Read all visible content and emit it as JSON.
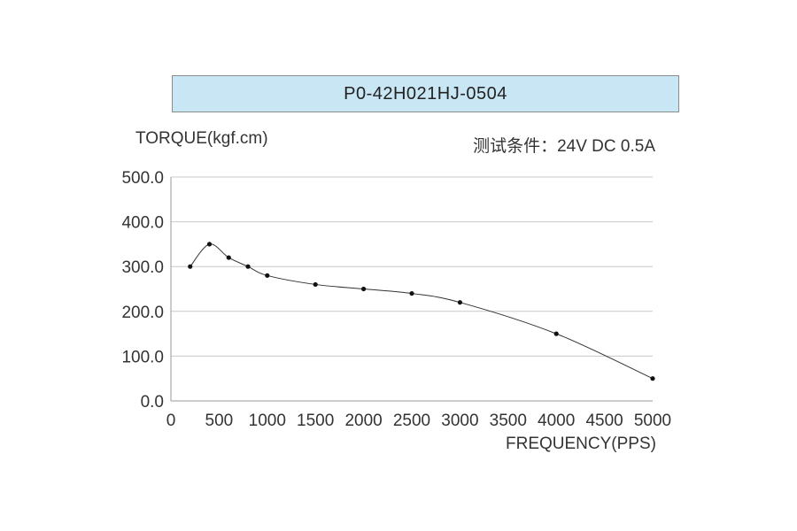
{
  "chart_data": {
    "type": "line",
    "title": "P0-42H021HJ-0504",
    "ylabel": "TORQUE(kgf.cm)",
    "xlabel": "FREQUENCY(PPS)",
    "annotation": "测试条件：24V DC   0.5A",
    "xlim": [
      0,
      5000
    ],
    "ylim": [
      0,
      500
    ],
    "x_ticks": [
      "0",
      "500",
      "1000",
      "1500",
      "2000",
      "2500",
      "3000",
      "3500",
      "4000",
      "4500",
      "5000"
    ],
    "y_ticks": [
      "0.0",
      "100.0",
      "200.0",
      "300.0",
      "400.0",
      "500.0"
    ],
    "grid": "horizontal",
    "series": [
      {
        "x": [
          200,
          400,
          600,
          800,
          1000,
          1500,
          2000,
          2500,
          3000,
          4000,
          5000
        ],
        "y": [
          300,
          350,
          320,
          300,
          280,
          260,
          250,
          240,
          220,
          150,
          50
        ]
      }
    ],
    "colors": {
      "title_bg": "#c9e6f4",
      "line": "#333333",
      "grid": "#c8c8c8"
    }
  }
}
